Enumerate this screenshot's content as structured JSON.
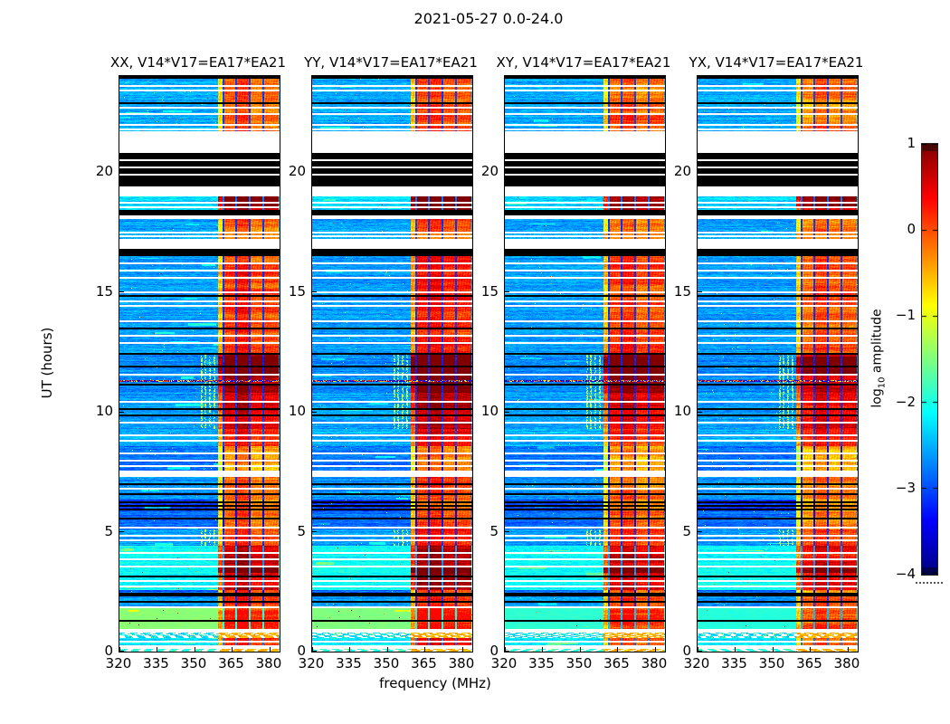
{
  "figure": {
    "title": "2021-05-27 0.0-24.0",
    "background": "#ffffff"
  },
  "axes": {
    "xlabel": "frequency (MHz)",
    "ylabel": "UT (hours)",
    "xtick_labels": [
      "320",
      "335",
      "350",
      "365",
      "380"
    ],
    "xtick_values": [
      320,
      335,
      350,
      365,
      380
    ],
    "ytick_labels": [
      "0",
      "5",
      "10",
      "15",
      "20"
    ],
    "ytick_values": [
      0,
      5,
      10,
      15,
      20
    ]
  },
  "colorbar": {
    "label_pre": "log",
    "label_sub": "10",
    "label_post": " amplitude",
    "tick_labels": [
      "1",
      "0",
      "−1",
      "−2",
      "−3",
      "−4"
    ],
    "tick_values": [
      1,
      0,
      -1,
      -2,
      -3,
      -4
    ],
    "vmin": -4,
    "vmax": 1,
    "colormap": "jet",
    "top_color": "#800000",
    "bottom_color": "#000080"
  },
  "chart_data": {
    "type": "heatmap",
    "title": "2021-05-27 0.0-24.0",
    "xlabel": "frequency (MHz)",
    "ylabel": "UT (hours)",
    "x_range_mhz": [
      320,
      384
    ],
    "y_range_hours": [
      0,
      24
    ],
    "value_range_log10_amplitude": [
      -4,
      1
    ],
    "colormap": "jet",
    "panels": [
      {
        "label": "XX, V14*V17=EA17*EA21",
        "rfi_gain": 1.0,
        "band_level": -1.45,
        "seed": 11
      },
      {
        "label": "YY, V14*V17=EA17*EA21",
        "rfi_gain": 1.12,
        "band_level": -1.5,
        "seed": 22
      },
      {
        "label": "XY, V14*V17=EA17*EA21",
        "rfi_gain": 0.95,
        "band_level": -1.9,
        "seed": 33
      },
      {
        "label": "YX, V14*V17=EA17*EA21",
        "rfi_gain": 0.9,
        "band_level": -1.95,
        "seed": 44
      }
    ],
    "rfi_band_mhz": [
      359.2,
      383.3
    ],
    "rfi_dark_separators_mhz": [
      [
        361.2,
        361.65
      ],
      [
        366.1,
        366.7
      ],
      [
        371.6,
        372.15
      ],
      [
        377.1,
        377.65
      ]
    ],
    "rfi_column_gains": [
      0.05,
      0.3,
      0.0,
      0.12
    ],
    "stripe_columns_mhz": [
      352.6,
      354.3,
      356.0,
      357.7
    ],
    "segments": [
      {
        "t": [
          23.87,
          24.0
        ],
        "type": "black"
      },
      {
        "t": [
          21.7,
          23.87
        ],
        "type": "data",
        "level": -2.55,
        "rfi": 1.0
      },
      {
        "t": [
          20.8,
          21.7
        ],
        "type": "white"
      },
      {
        "t": [
          19.4,
          20.8
        ],
        "type": "black"
      },
      {
        "t": [
          19.0,
          19.4
        ],
        "type": "white"
      },
      {
        "t": [
          18.4,
          19.0
        ],
        "type": "data",
        "level": -2.3,
        "rfi": 1.7
      },
      {
        "t": [
          18.2,
          18.4
        ],
        "type": "black"
      },
      {
        "t": [
          18.05,
          18.2
        ],
        "type": "white"
      },
      {
        "t": [
          17.5,
          18.05
        ],
        "type": "data",
        "level": -2.6,
        "rfi": 1.0
      },
      {
        "t": [
          17.15,
          17.5
        ],
        "type": "white"
      },
      {
        "t": [
          16.8,
          17.15
        ],
        "type": "white"
      },
      {
        "t": [
          16.5,
          16.8
        ],
        "type": "black"
      },
      {
        "t": [
          12.45,
          16.5
        ],
        "type": "data",
        "level": -2.6,
        "rfi": 1.15
      },
      {
        "t": [
          10.8,
          12.45
        ],
        "type": "data",
        "level": -2.7,
        "rfi": 1.9,
        "stripes": true
      },
      {
        "t": [
          9.3,
          10.8
        ],
        "type": "data",
        "level": -2.6,
        "rfi": 1.6,
        "stripes": true
      },
      {
        "t": [
          8.55,
          9.3
        ],
        "type": "data",
        "level": -2.5,
        "rfi": 1.3
      },
      {
        "t": [
          7.55,
          8.55
        ],
        "type": "data",
        "level": -2.8,
        "rfi": 0.7
      },
      {
        "t": [
          7.3,
          7.55
        ],
        "type": "white"
      },
      {
        "t": [
          6.35,
          7.3
        ],
        "type": "data",
        "level": -2.65,
        "rfi": 1.0
      },
      {
        "t": [
          5.85,
          6.35
        ],
        "type": "data",
        "level": -3.1,
        "rfi": 0.8
      },
      {
        "t": [
          5.1,
          5.85
        ],
        "type": "data",
        "level": -2.85,
        "rfi": 1.0
      },
      {
        "t": [
          4.4,
          5.1
        ],
        "type": "data",
        "level": -2.6,
        "rfi": 1.2,
        "stripes": true
      },
      {
        "t": [
          2.55,
          4.4
        ],
        "type": "data",
        "level": -2.1,
        "rfi": 1.6
      },
      {
        "t": [
          2.3,
          2.55
        ],
        "type": "data",
        "level": -2.9,
        "rfi": 1.0
      },
      {
        "t": [
          1.9,
          2.3
        ],
        "type": "data",
        "level": -2.6,
        "rfi": 1.1
      },
      {
        "t": [
          1.8,
          1.9
        ],
        "type": "white"
      },
      {
        "t": [
          0.95,
          1.8
        ],
        "type": "band",
        "rfi": 1.2
      },
      {
        "t": [
          0.8,
          0.95
        ],
        "type": "white"
      },
      {
        "t": [
          0.55,
          0.8
        ],
        "type": "dashes",
        "dash_level": -2.3
      },
      {
        "t": [
          0.28,
          0.55
        ],
        "type": "data",
        "level": -2.25,
        "rfi": 1.2
      },
      {
        "t": [
          0.1,
          0.28
        ],
        "type": "white"
      },
      {
        "t": [
          0.0,
          0.1
        ],
        "type": "dashes",
        "dash_level": -2.0
      }
    ],
    "white_lines_hours": [
      23.6,
      23.4,
      22.7,
      22.45,
      22.0,
      21.8,
      20.5,
      20.2,
      19.9,
      18.75,
      18.55,
      16.2,
      15.9,
      15.62,
      15.0,
      14.62,
      14.42,
      13.8,
      13.2,
      12.9,
      11.55,
      10.45,
      9.55,
      9.05,
      8.8,
      8.3,
      8.0,
      7.75,
      7.42,
      6.8,
      5.2,
      4.85,
      4.65,
      4.15,
      3.85,
      3.55,
      2.95,
      2.75,
      0.42
    ],
    "black_lines_hours": [
      22.9,
      14.85,
      13.5,
      12.45,
      11.9,
      11.15,
      10.15,
      9.85,
      7.0,
      6.6,
      6.25,
      6.1,
      5.95,
      5.55,
      3.15,
      2.45,
      2.35,
      2.1,
      1.3
    ],
    "data_lines_hours": [
      17.25,
      17.4
    ],
    "speckle_lines_hours": [
      11.3
    ],
    "hot_rows": [
      {
        "t": [
          3.28,
          3.52
        ],
        "boost": 0.7
      },
      {
        "t": [
          11.55,
          12.3
        ],
        "boost": 0.5
      },
      {
        "t": [
          18.55,
          19.0
        ],
        "boost": 0.4
      }
    ]
  }
}
